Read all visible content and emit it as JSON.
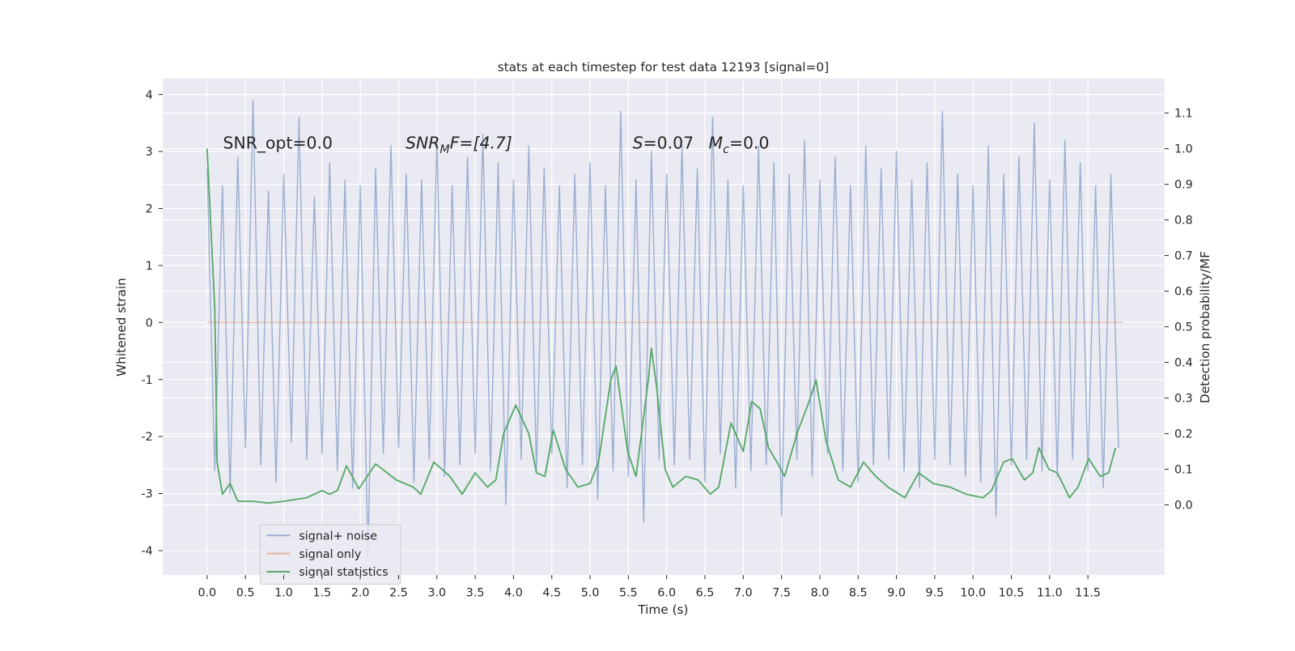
{
  "chart_data": {
    "type": "line",
    "title": "stats at each timestep for test data 12193 [signal=0]",
    "xlabel": "Time (s)",
    "ylabel": "Whitened strain",
    "y2label": "Detection probability/MF",
    "annotations": [
      {
        "text": "SNR_opt=0.0"
      },
      {
        "base": "SNR",
        "sub": "M",
        "rest": "F=[4.7]"
      },
      {
        "base": "S",
        "rest": "=0.07"
      },
      {
        "base": "M",
        "sub": "c",
        "rest": "=0.0"
      }
    ],
    "xlim": [
      -0.58,
      12.5
    ],
    "ylim": [
      -4.43,
      4.28
    ],
    "y2lim": [
      -0.197,
      1.197
    ],
    "xticks": [
      {
        "value": 0,
        "label": "0.0"
      },
      {
        "value": 0.5,
        "label": "0.5"
      },
      {
        "value": 1,
        "label": "1.0"
      },
      {
        "value": 1.5,
        "label": "1.5"
      },
      {
        "value": 2,
        "label": "2.0"
      },
      {
        "value": 2.5,
        "label": "2.5"
      },
      {
        "value": 3,
        "label": "3.0"
      },
      {
        "value": 3.5,
        "label": "3.5"
      },
      {
        "value": 4,
        "label": "4.0"
      },
      {
        "value": 4.5,
        "label": "4.5"
      },
      {
        "value": 5,
        "label": "5.0"
      },
      {
        "value": 5.5,
        "label": "5.5"
      },
      {
        "value": 6,
        "label": "6.0"
      },
      {
        "value": 6.5,
        "label": "6.5"
      },
      {
        "value": 7,
        "label": "7.0"
      },
      {
        "value": 7.5,
        "label": "7.5"
      },
      {
        "value": 8,
        "label": "8.0"
      },
      {
        "value": 8.5,
        "label": "8.5"
      },
      {
        "value": 9,
        "label": "9.0"
      },
      {
        "value": 9.5,
        "label": "9.5"
      },
      {
        "value": 10,
        "label": "10.0"
      },
      {
        "value": 10.5,
        "label": "10.5"
      },
      {
        "value": 11,
        "label": "11.0"
      },
      {
        "value": 11.5,
        "label": "11.5"
      }
    ],
    "yticks": [
      -4,
      -3,
      -2,
      -1,
      0,
      1,
      2,
      3,
      4
    ],
    "y2ticks": [
      {
        "value": 0,
        "label": "0.0"
      },
      0.1,
      0.2,
      0.3,
      0.4,
      0.5,
      0.6,
      0.7,
      0.8,
      0.9,
      {
        "value": 1,
        "label": "1.0"
      },
      1.1
    ],
    "grid": true,
    "legend": "lower left",
    "series": [
      {
        "name": "signal+ noise",
        "color": "#4c72b0",
        "x": [
          0,
          0.1,
          0.2,
          0.3,
          0.4,
          0.5,
          0.6,
          0.7,
          0.8,
          0.9,
          1,
          1.1,
          1.2,
          1.3,
          1.4,
          1.5,
          1.6,
          1.7,
          1.8,
          1.9,
          2,
          2.1,
          2.2,
          2.3,
          2.4,
          2.5,
          2.6,
          2.7,
          2.8,
          2.9,
          3,
          3.1,
          3.2,
          3.3,
          3.4,
          3.5,
          3.6,
          3.7,
          3.8,
          3.9,
          4,
          4.1,
          4.2,
          4.3,
          4.4,
          4.5,
          4.6,
          4.7,
          4.8,
          4.9,
          5,
          5.1,
          5.2,
          5.3,
          5.4,
          5.5,
          5.6,
          5.7,
          5.8,
          5.9,
          6,
          6.1,
          6.2,
          6.3,
          6.4,
          6.5,
          6.6,
          6.7,
          6.8,
          6.9,
          7,
          7.1,
          7.2,
          7.3,
          7.4,
          7.5,
          7.6,
          7.7,
          7.8,
          7.9,
          8,
          8.1,
          8.2,
          8.3,
          8.4,
          8.5,
          8.6,
          8.7,
          8.8,
          8.9,
          9,
          9.1,
          9.2,
          9.3,
          9.4,
          9.5,
          9.6,
          9.7,
          9.8,
          9.9,
          10,
          10.1,
          10.2,
          10.3,
          10.4,
          10.5,
          10.6,
          10.7,
          10.8,
          10.9,
          11,
          11.1,
          11.2,
          11.3,
          11.4,
          11.5,
          11.6,
          11.7,
          11.8,
          11.9
        ],
        "values": [
          2.7,
          -2.6,
          2.4,
          -3.0,
          2.9,
          -2.2,
          3.9,
          -2.5,
          2.3,
          -2.8,
          2.6,
          -2.1,
          3.6,
          -2.4,
          2.2,
          -2.3,
          2.8,
          -2.6,
          2.5,
          -2.9,
          2.4,
          -4.1,
          2.7,
          -2.3,
          3.1,
          -2.2,
          2.6,
          -2.8,
          2.5,
          -2.4,
          3.2,
          -2.7,
          2.4,
          -2.5,
          2.9,
          -2.3,
          3.3,
          -2.6,
          2.8,
          -3.2,
          2.5,
          -2.4,
          3.1,
          -2.6,
          2.7,
          -2.3,
          2.4,
          -2.9,
          2.6,
          -2.5,
          2.8,
          -3.1,
          2.4,
          -2.6,
          3.7,
          -2.7,
          2.5,
          -3.5,
          3.0,
          -2.4,
          2.6,
          -2.5,
          3.1,
          -2.4,
          2.7,
          -2.8,
          3.6,
          -2.3,
          2.5,
          -2.9,
          2.4,
          -2.6,
          3.1,
          -2.5,
          2.8,
          -3.4,
          2.6,
          -2.4,
          3.2,
          -2.7,
          2.5,
          -2.3,
          2.9,
          -2.6,
          2.4,
          -2.8,
          3.1,
          -2.5,
          2.7,
          -2.4,
          3.0,
          -2.6,
          2.5,
          -2.9,
          2.8,
          -2.4,
          3.7,
          -2.5,
          2.6,
          -2.7,
          2.4,
          -2.8,
          3.1,
          -3.4,
          2.6,
          -2.5,
          2.9,
          -2.4,
          3.5,
          -2.6,
          2.5,
          -2.7,
          3.2,
          -2.4,
          2.8,
          -2.6,
          2.4,
          -2.9,
          2.6,
          -2.2
        ]
      },
      {
        "name": "signal only",
        "color": "#dd8452",
        "x": [
          0,
          11.95
        ],
        "values": [
          0,
          0
        ]
      },
      {
        "name": "signal statistics",
        "color": "#55a868",
        "axis": "y2",
        "x": [
          0,
          0.1,
          0.13,
          0.2,
          0.3,
          0.4,
          0.6,
          0.8,
          1.0,
          1.3,
          1.5,
          1.6,
          1.7,
          1.82,
          1.98,
          2.2,
          2.47,
          2.69,
          2.79,
          2.96,
          3.17,
          3.33,
          3.5,
          3.66,
          3.77,
          3.87,
          4.03,
          4.2,
          4.3,
          4.41,
          4.52,
          4.68,
          4.84,
          5.0,
          5.11,
          5.27,
          5.34,
          5.49,
          5.6,
          5.76,
          5.8,
          5.87,
          5.98,
          6.08,
          6.25,
          6.41,
          6.57,
          6.68,
          6.84,
          7.0,
          7.11,
          7.22,
          7.33,
          7.44,
          7.54,
          7.7,
          7.86,
          7.95,
          8.08,
          8.24,
          8.4,
          8.57,
          8.73,
          8.89,
          9.11,
          9.29,
          9.48,
          9.7,
          9.91,
          10.13,
          10.24,
          10.4,
          10.51,
          10.67,
          10.78,
          10.86,
          10.99,
          11.1,
          11.26,
          11.37,
          11.51,
          11.66,
          11.77,
          11.86
        ],
        "values": [
          1.0,
          0.55,
          0.12,
          0.03,
          0.06,
          0.01,
          0.01,
          0.005,
          0.01,
          0.02,
          0.04,
          0.03,
          0.04,
          0.11,
          0.045,
          0.115,
          0.07,
          0.05,
          0.03,
          0.12,
          0.08,
          0.03,
          0.09,
          0.05,
          0.07,
          0.2,
          0.28,
          0.2,
          0.09,
          0.08,
          0.21,
          0.1,
          0.05,
          0.06,
          0.12,
          0.35,
          0.39,
          0.15,
          0.08,
          0.35,
          0.44,
          0.33,
          0.1,
          0.05,
          0.08,
          0.07,
          0.03,
          0.05,
          0.23,
          0.15,
          0.29,
          0.27,
          0.16,
          0.12,
          0.08,
          0.2,
          0.29,
          0.35,
          0.18,
          0.07,
          0.05,
          0.12,
          0.08,
          0.05,
          0.02,
          0.09,
          0.06,
          0.05,
          0.03,
          0.02,
          0.04,
          0.12,
          0.13,
          0.07,
          0.09,
          0.16,
          0.1,
          0.09,
          0.02,
          0.05,
          0.13,
          0.08,
          0.09,
          0.16
        ]
      }
    ]
  }
}
